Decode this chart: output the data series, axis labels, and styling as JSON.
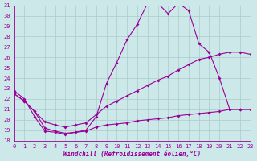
{
  "xlabel": "Windchill (Refroidissement éolien,°C)",
  "bg_color": "#cce8e8",
  "line_color": "#990099",
  "grid_color": "#aacccc",
  "xmin": 0,
  "xmax": 23,
  "ymin": 18,
  "ymax": 31,
  "yticks": [
    18,
    19,
    20,
    21,
    22,
    23,
    24,
    25,
    26,
    27,
    28,
    29,
    30,
    31
  ],
  "xticks": [
    0,
    1,
    2,
    3,
    4,
    5,
    6,
    7,
    8,
    9,
    10,
    11,
    12,
    13,
    14,
    15,
    16,
    17,
    18,
    19,
    20,
    21,
    22,
    23
  ],
  "line1_x": [
    0,
    1,
    2,
    3,
    4,
    5,
    6,
    7,
    8,
    9,
    10,
    11,
    12,
    13,
    14,
    15,
    16,
    17,
    18,
    19,
    20,
    21,
    22,
    23
  ],
  "line1_y": [
    22.8,
    22.0,
    20.3,
    18.9,
    18.8,
    18.6,
    18.8,
    19.0,
    20.3,
    23.5,
    25.5,
    27.7,
    29.2,
    31.2,
    31.2,
    30.2,
    31.2,
    30.5,
    27.3,
    26.5,
    24.0,
    21.0,
    21.0,
    21.0
  ],
  "line2_x": [
    0,
    1,
    2,
    3,
    4,
    5,
    6,
    7,
    8,
    9,
    10,
    11,
    12,
    13,
    14,
    15,
    16,
    17,
    18,
    19,
    20,
    21,
    22,
    23
  ],
  "line2_y": [
    22.5,
    21.8,
    20.8,
    19.8,
    19.5,
    19.3,
    19.5,
    19.7,
    20.5,
    21.3,
    21.8,
    22.3,
    22.8,
    23.3,
    23.8,
    24.2,
    24.8,
    25.3,
    25.8,
    26.0,
    26.3,
    26.5,
    26.5,
    26.3
  ],
  "line3_x": [
    0,
    1,
    2,
    3,
    4,
    5,
    6,
    7,
    8,
    9,
    10,
    11,
    12,
    13,
    14,
    15,
    16,
    17,
    18,
    19,
    20,
    21,
    22,
    23
  ],
  "line3_y": [
    22.5,
    21.8,
    20.8,
    19.2,
    18.9,
    18.7,
    18.8,
    18.9,
    19.3,
    19.5,
    19.6,
    19.7,
    19.9,
    20.0,
    20.1,
    20.2,
    20.4,
    20.5,
    20.6,
    20.7,
    20.8,
    21.0,
    21.0,
    21.0
  ]
}
